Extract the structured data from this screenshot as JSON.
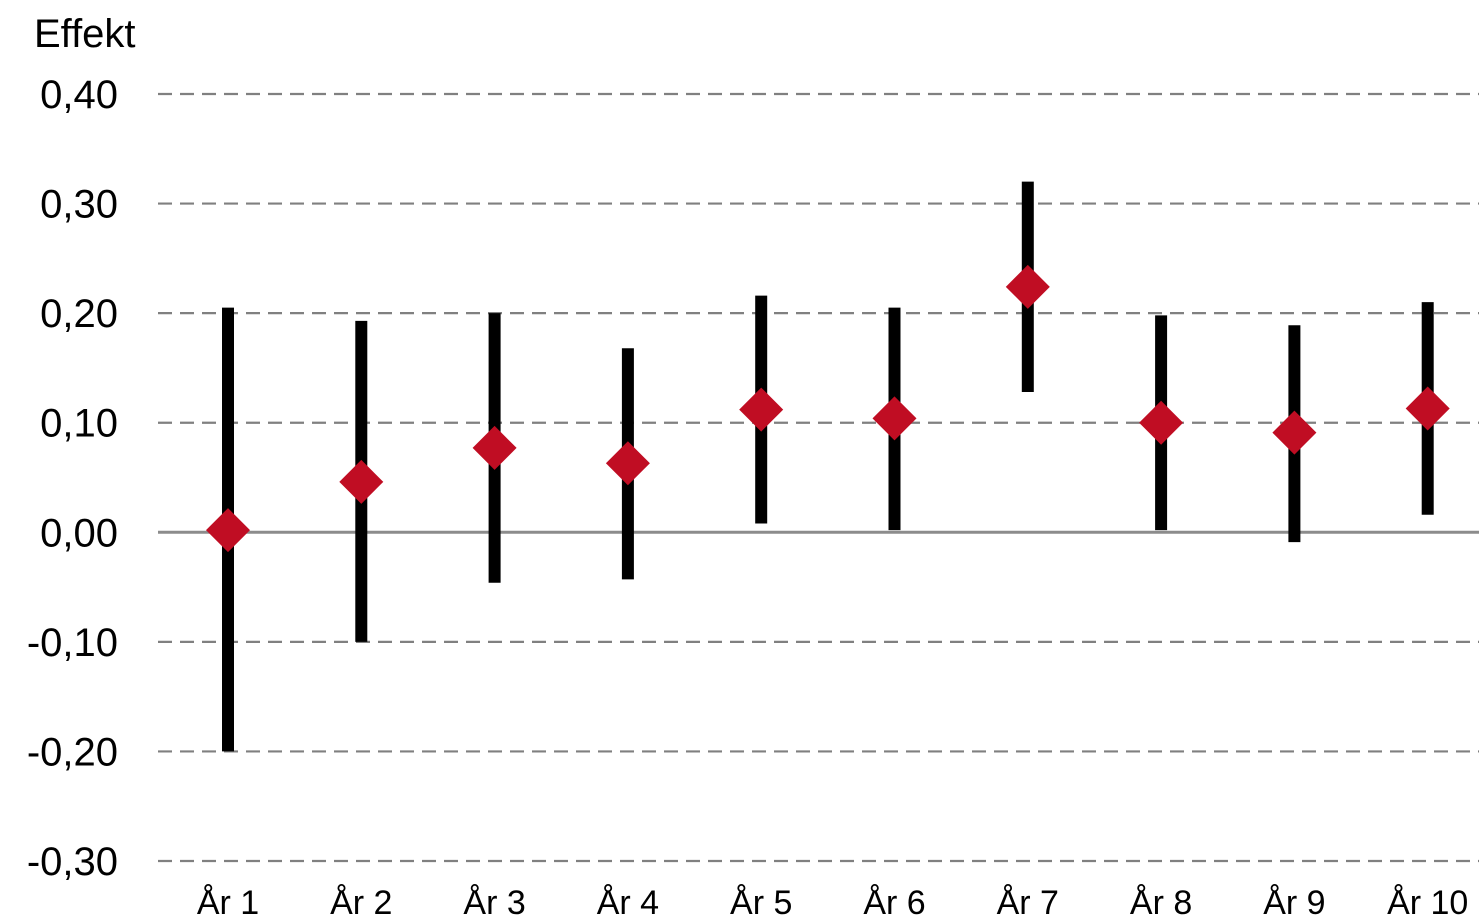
{
  "chart_data": {
    "type": "scatter",
    "title": "",
    "ylabel": "Effekt",
    "xlabel": "",
    "ylim": [
      -0.3,
      0.4
    ],
    "yticks": [
      0.4,
      0.3,
      0.2,
      0.1,
      0.0,
      -0.1,
      -0.2,
      -0.3
    ],
    "ytick_labels": [
      "0,40",
      "0,30",
      "0,20",
      "0,10",
      "0,00",
      "-0,10",
      "-0,20",
      "-0,30"
    ],
    "grid": "horizontal-dashed",
    "categories": [
      "År 1",
      "År 2",
      "År 3",
      "År 4",
      "År 5",
      "År 6",
      "År 7",
      "År 8",
      "År 9",
      "År 10"
    ],
    "series": [
      {
        "values": [
          0.002,
          0.046,
          0.077,
          0.063,
          0.112,
          0.104,
          0.224,
          0.1,
          0.091,
          0.113
        ],
        "lower": [
          -0.2,
          -0.1,
          -0.046,
          -0.043,
          0.008,
          0.002,
          0.128,
          0.002,
          -0.009,
          0.016
        ],
        "upper": [
          0.205,
          0.193,
          0.2,
          0.168,
          0.216,
          0.205,
          0.32,
          0.198,
          0.189,
          0.21
        ]
      }
    ],
    "colors": {
      "marker": "#C00D23",
      "errorbar": "#000000",
      "grid": "#808080",
      "zero_line": "#8C8C8C"
    }
  }
}
